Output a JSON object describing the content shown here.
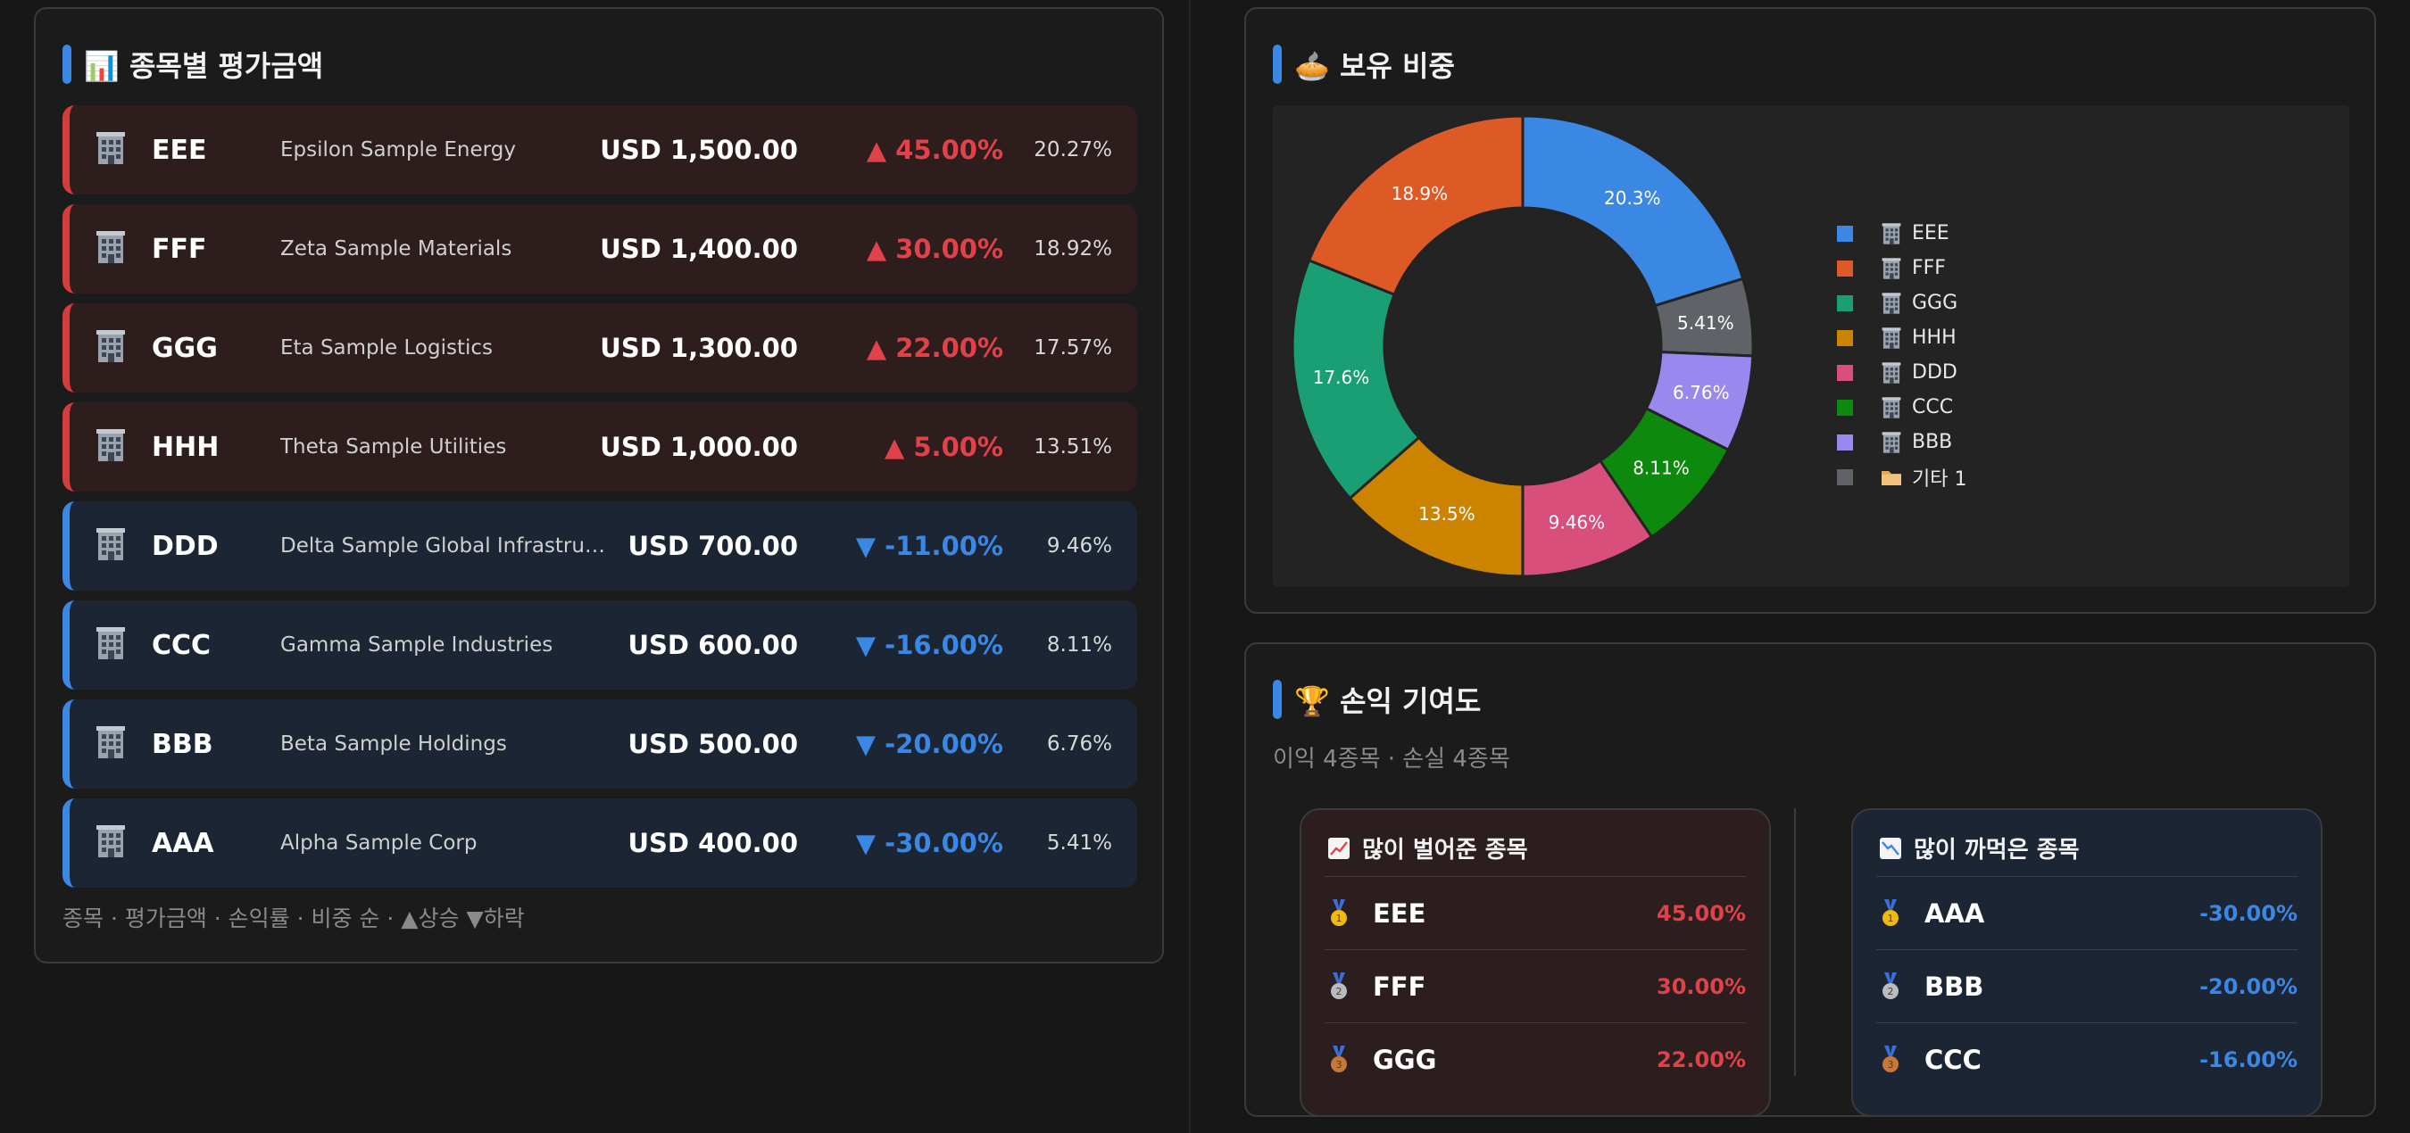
{
  "colors": {
    "gain": "#e0424a",
    "loss": "#3b87e4",
    "accent": "#3b87e4",
    "row_up_bg": "#2e1d1d",
    "row_down_bg": "#1b2533"
  },
  "holdings_panel": {
    "title": "📊 종목별 평가금액",
    "footer": "종목 · 평가금액 · 손익률 · 비중 순 · ▲상승 ▼하락",
    "rows": [
      {
        "icon": "building-icon",
        "ticker": "EEE",
        "name": "Epsilon Sample Energy",
        "value": "USD 1,500.00",
        "change": "▲ 45.00%",
        "weight": "20.27%",
        "direction": "up"
      },
      {
        "icon": "building-icon",
        "ticker": "FFF",
        "name": "Zeta Sample Materials",
        "value": "USD 1,400.00",
        "change": "▲ 30.00%",
        "weight": "18.92%",
        "direction": "up"
      },
      {
        "icon": "building-icon",
        "ticker": "GGG",
        "name": "Eta Sample Logistics",
        "value": "USD 1,300.00",
        "change": "▲ 22.00%",
        "weight": "17.57%",
        "direction": "up"
      },
      {
        "icon": "building-icon",
        "ticker": "HHH",
        "name": "Theta Sample Utilities",
        "value": "USD 1,000.00",
        "change": "▲ 5.00%",
        "weight": "13.51%",
        "direction": "up"
      },
      {
        "icon": "building-icon",
        "ticker": "DDD",
        "name": "Delta Sample Global Infrastructure…",
        "value": "USD 700.00",
        "change": "▼ -11.00%",
        "weight": "9.46%",
        "direction": "down"
      },
      {
        "icon": "building-icon",
        "ticker": "CCC",
        "name": "Gamma Sample Industries",
        "value": "USD 600.00",
        "change": "▼ -16.00%",
        "weight": "8.11%",
        "direction": "down"
      },
      {
        "icon": "building-icon",
        "ticker": "BBB",
        "name": "Beta Sample Holdings",
        "value": "USD 500.00",
        "change": "▼ -20.00%",
        "weight": "6.76%",
        "direction": "down"
      },
      {
        "icon": "building-icon",
        "ticker": "AAA",
        "name": "Alpha Sample Corp",
        "value": "USD 400.00",
        "change": "▼ -30.00%",
        "weight": "5.41%",
        "direction": "down"
      }
    ]
  },
  "pie_panel": {
    "title": "🥧 보유 비중"
  },
  "chart_data": {
    "type": "pie",
    "donut": true,
    "title": "🥧 보유 비중",
    "legend_position": "right",
    "slices": [
      {
        "legend": "EEE",
        "label": "20.3%",
        "value": 20.27,
        "color": "#3b87e4",
        "icon": "building-icon"
      },
      {
        "legend": "기타 1",
        "label": "5.41%",
        "value": 5.41,
        "color": "#5f6368",
        "icon": "folder-icon"
      },
      {
        "legend": "BBB",
        "label": "6.76%",
        "value": 6.76,
        "color": "#9988ee",
        "icon": "building-icon"
      },
      {
        "legend": "CCC",
        "label": "8.11%",
        "value": 8.11,
        "color": "#0d8a0d",
        "icon": "building-icon"
      },
      {
        "legend": "DDD",
        "label": "9.46%",
        "value": 9.46,
        "color": "#d94f7c",
        "icon": "building-icon"
      },
      {
        "legend": "HHH",
        "label": "13.5%",
        "value": 13.51,
        "color": "#cc8400",
        "icon": "building-icon"
      },
      {
        "legend": "GGG",
        "label": "17.6%",
        "value": 17.57,
        "color": "#1a9e73",
        "icon": "building-icon"
      },
      {
        "legend": "FFF",
        "label": "18.9%",
        "value": 18.92,
        "color": "#dd5a26",
        "icon": "building-icon"
      }
    ],
    "legend_order": [
      "EEE",
      "FFF",
      "GGG",
      "HHH",
      "DDD",
      "CCC",
      "BBB",
      "기타 1"
    ]
  },
  "contribution_panel": {
    "title": "🏆 손익 기여도",
    "subtitle": "이익 4종목 · 손실 4종목",
    "gain_card": {
      "icon": "chart-up-icon",
      "title": "많이 벌어준 종목",
      "items": [
        {
          "medal": "gold-medal-icon",
          "ticker": "EEE",
          "pct": "45.00%"
        },
        {
          "medal": "silver-medal-icon",
          "ticker": "FFF",
          "pct": "30.00%"
        },
        {
          "medal": "bronze-medal-icon",
          "ticker": "GGG",
          "pct": "22.00%"
        }
      ]
    },
    "loss_card": {
      "icon": "chart-down-icon",
      "title": "많이 까먹은 종목",
      "items": [
        {
          "medal": "gold-medal-icon",
          "ticker": "AAA",
          "pct": "-30.00%"
        },
        {
          "medal": "silver-medal-icon",
          "ticker": "BBB",
          "pct": "-20.00%"
        },
        {
          "medal": "bronze-medal-icon",
          "ticker": "CCC",
          "pct": "-16.00%"
        }
      ]
    }
  }
}
